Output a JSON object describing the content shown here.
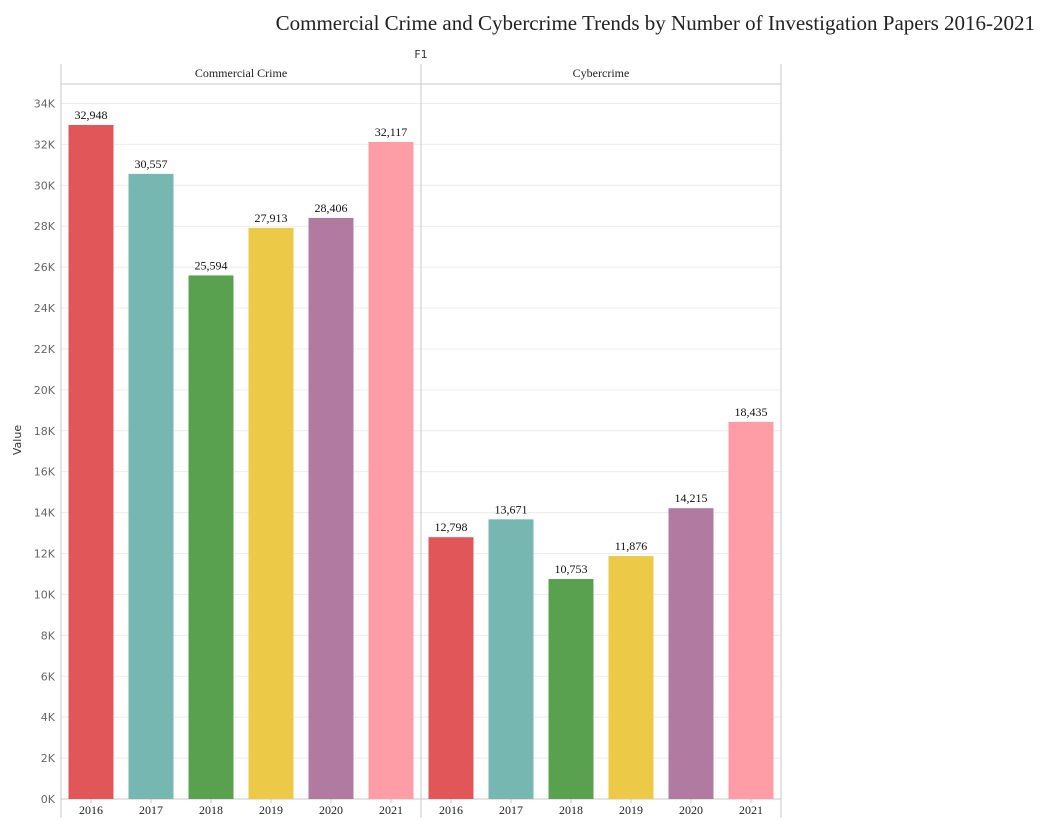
{
  "chart_data": {
    "type": "bar",
    "title": "Commercial Crime and Cybercrime Trends by Number of Investigation Papers 2016-2021",
    "facet_label": "F1",
    "ylabel": "Value",
    "ylim": [
      0,
      35000
    ],
    "yticks": [
      "0K",
      "2K",
      "4K",
      "6K",
      "8K",
      "10K",
      "12K",
      "14K",
      "16K",
      "18K",
      "20K",
      "22K",
      "24K",
      "26K",
      "28K",
      "30K",
      "32K",
      "34K"
    ],
    "grid": true,
    "colors": {
      "2016": "#e15759",
      "2017": "#76b7b2",
      "2018": "#59a14f",
      "2019": "#edc948",
      "2020": "#b07aa1",
      "2021": "#ff9da7"
    },
    "panels": [
      {
        "name": "Commercial Crime",
        "categories": [
          "2016",
          "2017",
          "2018",
          "2019",
          "2020",
          "2021"
        ],
        "values": [
          32948,
          30557,
          25594,
          27913,
          28406,
          32117
        ],
        "labels": [
          "32,948",
          "30,557",
          "25,594",
          "27,913",
          "28,406",
          "32,117"
        ]
      },
      {
        "name": "Cybercrime",
        "categories": [
          "2016",
          "2017",
          "2018",
          "2019",
          "2020",
          "2021"
        ],
        "values": [
          12798,
          13671,
          10753,
          11876,
          14215,
          18435
        ],
        "labels": [
          "12,798",
          "13,671",
          "10,753",
          "11,876",
          "14,215",
          "18,435"
        ]
      }
    ]
  }
}
